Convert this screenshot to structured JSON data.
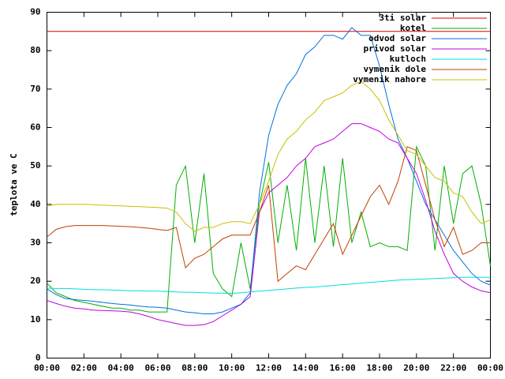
{
  "chart_data": {
    "type": "line",
    "ylabel": "teplota ve C",
    "xlim": [
      0,
      24
    ],
    "ylim": [
      0,
      90
    ],
    "xticks": [
      {
        "value": 0,
        "label": "00:00"
      },
      {
        "value": 2,
        "label": "02:00"
      },
      {
        "value": 4,
        "label": "04:00"
      },
      {
        "value": 6,
        "label": "06:00"
      },
      {
        "value": 8,
        "label": "08:00"
      },
      {
        "value": 10,
        "label": "10:00"
      },
      {
        "value": 12,
        "label": "12:00"
      },
      {
        "value": 14,
        "label": "14:00"
      },
      {
        "value": 16,
        "label": "16:00"
      },
      {
        "value": 18,
        "label": "18:00"
      },
      {
        "value": 20,
        "label": "20:00"
      },
      {
        "value": 22,
        "label": "22:00"
      },
      {
        "value": 24,
        "label": "00:00"
      }
    ],
    "yticks": [
      0,
      10,
      20,
      30,
      40,
      50,
      60,
      70,
      80,
      90
    ],
    "x": [
      0,
      0.5,
      1,
      1.5,
      2,
      2.5,
      3,
      3.5,
      4,
      4.5,
      5,
      5.5,
      6,
      6.5,
      7,
      7.5,
      8,
      8.5,
      9,
      9.5,
      10,
      10.5,
      11,
      11.5,
      12,
      12.5,
      13,
      13.5,
      14,
      14.5,
      15,
      15.5,
      16,
      16.5,
      17,
      17.5,
      18,
      18.5,
      19,
      19.5,
      20,
      20.5,
      21,
      21.5,
      22,
      22.5,
      23,
      23.5,
      24
    ],
    "series": [
      {
        "name": "3ti solar",
        "color": "#e00000",
        "values": [
          85,
          85,
          85,
          85,
          85,
          85,
          85,
          85,
          85,
          85,
          85,
          85,
          85,
          85,
          85,
          85,
          85,
          85,
          85,
          85,
          85,
          85,
          85,
          85,
          85,
          85,
          85,
          85,
          85,
          85,
          85,
          85,
          85,
          85,
          85,
          85,
          85,
          85,
          85,
          85,
          85,
          85,
          85,
          85,
          85,
          85,
          85,
          85,
          85
        ]
      },
      {
        "name": "kotel",
        "color": "#00b000",
        "values": [
          19.5,
          17,
          16,
          15,
          14.5,
          14,
          13.5,
          13,
          13,
          12.5,
          12.5,
          12,
          12,
          12,
          45,
          50,
          30,
          48,
          22,
          18,
          16,
          30,
          18,
          40,
          51,
          30,
          45,
          28,
          52,
          30,
          50,
          29,
          52,
          30,
          38,
          29,
          30,
          29,
          29,
          28,
          55,
          50,
          28,
          50,
          35,
          48,
          50,
          40,
          24
        ]
      },
      {
        "name": "odvod solar",
        "color": "#0070e0",
        "values": [
          18,
          16.5,
          15.5,
          15.2,
          15,
          14.8,
          14.5,
          14.2,
          14,
          13.8,
          13.5,
          13.3,
          13.2,
          13,
          12.5,
          12,
          11.8,
          11.5,
          11.5,
          12,
          13,
          14,
          17,
          43,
          58,
          66,
          71,
          74,
          79,
          81,
          84,
          84,
          83,
          86,
          84,
          84,
          76,
          66,
          57,
          52,
          46,
          40,
          36,
          32,
          28,
          25,
          22,
          20,
          19
        ]
      },
      {
        "name": "privod solar",
        "color": "#c000e0",
        "values": [
          15,
          14.2,
          13.5,
          13,
          12.8,
          12.5,
          12.4,
          12.3,
          12.2,
          12,
          11.5,
          10.8,
          10,
          9.5,
          9,
          8.5,
          8.5,
          8.7,
          9.5,
          11,
          12.5,
          14,
          16,
          38,
          43,
          45,
          47,
          50,
          52,
          55,
          56,
          57,
          59,
          61,
          61,
          60,
          59,
          57,
          56,
          52,
          48,
          41,
          33,
          27,
          22,
          20,
          18.5,
          17.5,
          17
        ]
      },
      {
        "name": "kutloch",
        "color": "#00dddd",
        "values": [
          18.2,
          18.1,
          18.1,
          18.0,
          17.9,
          17.8,
          17.8,
          17.7,
          17.6,
          17.5,
          17.5,
          17.4,
          17.4,
          17.3,
          17.2,
          17.1,
          17.1,
          17.0,
          16.9,
          16.9,
          16.8,
          17.0,
          17.2,
          17.4,
          17.6,
          17.8,
          18.0,
          18.2,
          18.4,
          18.5,
          18.7,
          18.9,
          19.1,
          19.3,
          19.5,
          19.7,
          19.9,
          20.1,
          20.3,
          20.4,
          20.5,
          20.6,
          20.7,
          20.8,
          20.9,
          21.0,
          21.0,
          21.0,
          21.0
        ]
      },
      {
        "name": "vymenik dole",
        "color": "#c04000",
        "values": [
          31.5,
          33.5,
          34.2,
          34.5,
          34.5,
          34.5,
          34.5,
          34.4,
          34.3,
          34.2,
          34,
          33.8,
          33.5,
          33.2,
          34,
          23.5,
          26,
          27,
          29,
          31,
          32,
          32,
          32,
          38,
          45,
          20,
          22,
          24,
          23,
          27,
          31,
          35,
          27,
          32,
          37,
          42,
          45,
          40,
          46,
          55,
          54,
          45,
          36,
          29,
          34,
          27,
          28,
          30,
          30
        ]
      },
      {
        "name": "vymenik nahore",
        "color": "#c8c000",
        "values": [
          39.5,
          40,
          40,
          40,
          40,
          39.9,
          39.8,
          39.7,
          39.6,
          39.5,
          39.4,
          39.3,
          39.2,
          39,
          38,
          35,
          33,
          34,
          34,
          35,
          35.5,
          35.5,
          35,
          40,
          46,
          53,
          57,
          59,
          62,
          64,
          67,
          68,
          69,
          71,
          72,
          70,
          67,
          62,
          58,
          54,
          53,
          50,
          47,
          46,
          43,
          42,
          38,
          35,
          36
        ]
      }
    ]
  }
}
